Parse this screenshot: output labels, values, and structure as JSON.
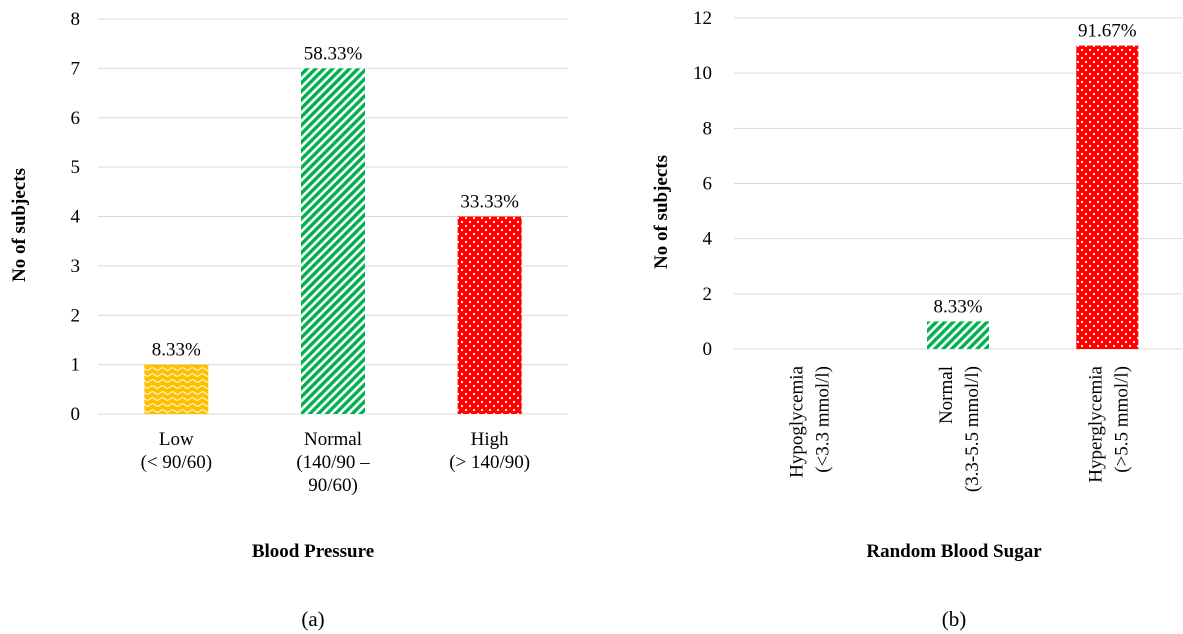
{
  "chart_data": [
    {
      "type": "bar",
      "panel_label": "(a)",
      "categories": [
        [
          "Low",
          "(< 90/60)"
        ],
        [
          "Normal",
          "(140/90 –",
          "90/60)"
        ],
        [
          "High",
          "(> 140/90)"
        ]
      ],
      "values": [
        1,
        7,
        4
      ],
      "data_labels": [
        "8.33%",
        "58.33%",
        "33.33%"
      ],
      "colors": [
        "#FFC000",
        "#00B050",
        "#FF0000"
      ],
      "patterns": [
        "wave",
        "diagonal",
        "dots"
      ],
      "xlabel": "Blood Pressure",
      "ylabel": "No of subjects",
      "ylim": [
        0,
        8
      ],
      "yticks": [
        0,
        1,
        2,
        3,
        4,
        5,
        6,
        7,
        8
      ],
      "grid": true,
      "category_rotation": 0
    },
    {
      "type": "bar",
      "panel_label": "(b)",
      "categories": [
        [
          "Hypoglycemia",
          "(<3.3 mmol/l)"
        ],
        [
          "Normal",
          "(3.3-5.5 mmol/l)"
        ],
        [
          "Hyperglycemia",
          "(>5.5 mmol/l)"
        ]
      ],
      "values": [
        0,
        1,
        11
      ],
      "data_labels": [
        "",
        "8.33%",
        "91.67%"
      ],
      "colors": [
        "#FFC000",
        "#00B050",
        "#FF0000"
      ],
      "patterns": [
        "wave",
        "diagonal",
        "dots"
      ],
      "xlabel": "Random Blood Sugar",
      "ylabel": "No of subjects",
      "ylim": [
        0,
        12
      ],
      "yticks": [
        0,
        2,
        4,
        6,
        8,
        10,
        12
      ],
      "grid": true,
      "category_rotation": -90
    }
  ]
}
